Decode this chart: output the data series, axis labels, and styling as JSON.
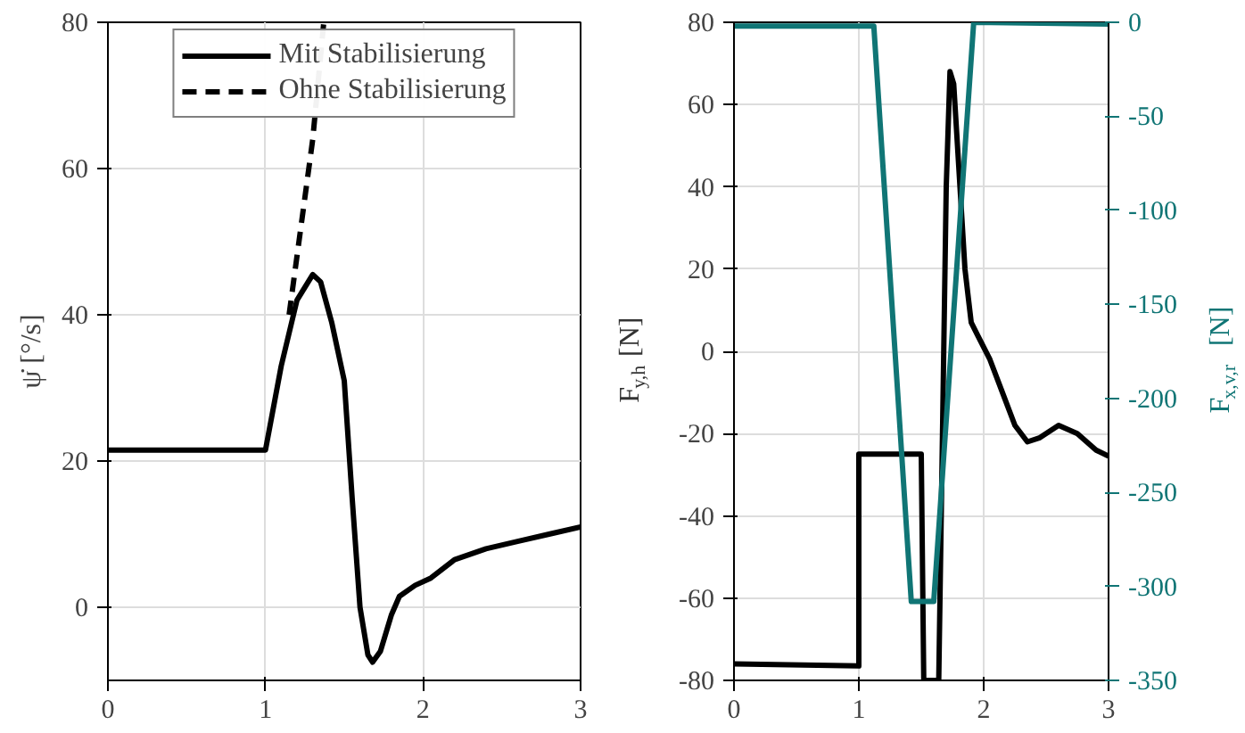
{
  "chart_data": [
    {
      "type": "line",
      "ylabel": "ψ̇ [°/s]",
      "xlim": [
        0,
        3
      ],
      "xticks": [
        0,
        1,
        2,
        3
      ],
      "ylim": [
        -10,
        80
      ],
      "yticks": [
        0,
        20,
        40,
        60,
        80
      ],
      "grid": true,
      "legend": "top",
      "series": [
        {
          "name": "Mit Stabilisierung",
          "color": "#000000",
          "line_style": "solid",
          "x": [
            0,
            1,
            1.1,
            1.2,
            1.3,
            1.35,
            1.42,
            1.5,
            1.55,
            1.6,
            1.65,
            1.68,
            1.73,
            1.8,
            1.85,
            1.95,
            2.05,
            2.2,
            2.4,
            2.6,
            2.8,
            3
          ],
          "values": [
            21.5,
            21.5,
            33,
            42,
            45.5,
            44.5,
            39,
            31,
            15,
            0,
            -6.5,
            -7.5,
            -6,
            -1,
            1.5,
            3,
            4,
            6.5,
            8,
            9,
            10,
            11
          ]
        },
        {
          "name": "Ohne Stabilisierung",
          "color": "#000000",
          "line_style": "dashed",
          "x": [
            1.15,
            1.2,
            1.25,
            1.3,
            1.37
          ],
          "values": [
            40,
            48,
            56,
            64,
            80
          ]
        }
      ]
    },
    {
      "type": "line",
      "ylabel": "F$_{y,h}$ [N]",
      "y2label": "F$_{x,v,r}$ [N]",
      "xlim": [
        0,
        3
      ],
      "xticks": [
        0,
        1,
        2,
        3
      ],
      "ylim": [
        -80,
        80
      ],
      "yticks": [
        -80,
        -60,
        -40,
        -20,
        0,
        20,
        40,
        60,
        80
      ],
      "y2lim": [
        -350,
        0
      ],
      "y2ticks": [
        -350,
        -300,
        -250,
        -200,
        -150,
        -100,
        -50,
        0
      ],
      "grid": true,
      "series": [
        {
          "color": "#000000",
          "x": [
            0,
            1,
            1,
            1.5,
            1.52,
            1.64,
            1.67,
            1.7,
            1.73,
            1.76,
            1.8,
            1.85,
            1.9,
            1.95,
            2.05,
            2.15,
            2.25,
            2.35,
            2.45,
            2.6,
            2.75,
            2.9,
            3
          ],
          "values": [
            -76,
            -76.5,
            -25,
            -25,
            -80,
            -80,
            -20,
            40,
            68,
            65,
            45,
            20,
            7,
            4,
            -2,
            -10,
            -18,
            -22,
            -21,
            -18,
            -20,
            -24,
            -25.5
          ]
        },
        {
          "color": "#107575",
          "axis": "y2",
          "x": [
            0,
            1.12,
            1.42,
            1.6,
            1.92,
            3
          ],
          "values": [
            -2,
            -2,
            -308,
            -308,
            0,
            -1
          ]
        }
      ]
    }
  ]
}
